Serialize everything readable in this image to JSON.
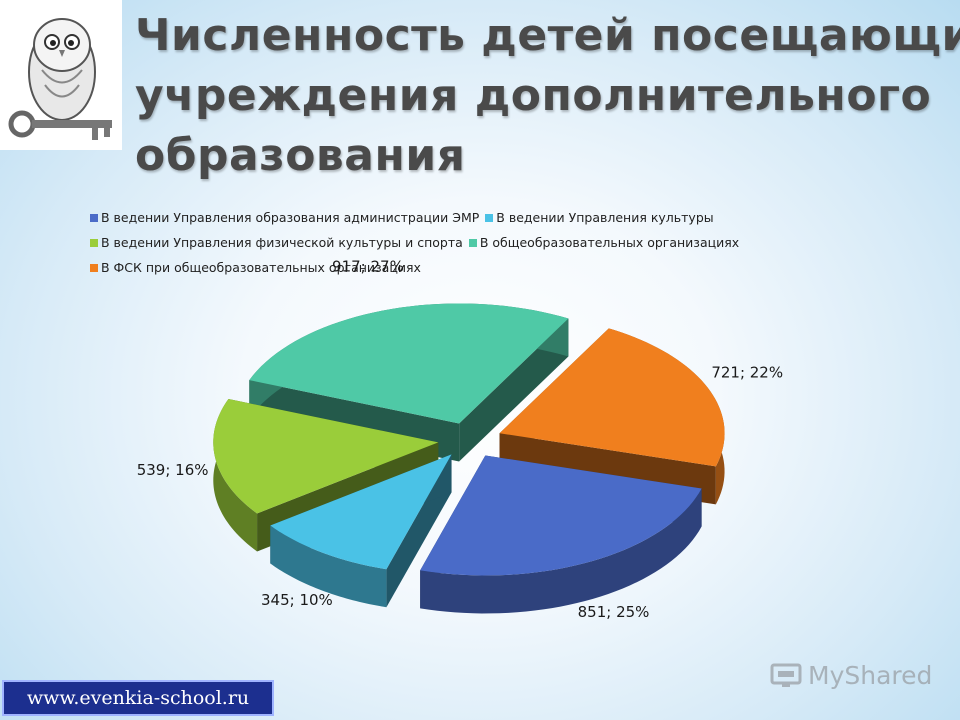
{
  "title_lines": [
    "Численность детей посещающих",
    "учреждения дополнительного",
    "образования"
  ],
  "legend_rows": [
    [
      0,
      1
    ],
    [
      2,
      3
    ],
    [
      4
    ]
  ],
  "website": "www.evenkia-school.ru",
  "watermark": "MyShared",
  "chart_data": {
    "type": "pie",
    "title": "",
    "categories": [
      "В ведении Управления образования администрации ЭМР",
      "В ведении Управления культуры",
      "В ведении Управления физической культуры и спорта",
      "В общеобразовательных организациях",
      "В ФСК при общеобразовательных организациях"
    ],
    "values": [
      851,
      345,
      539,
      917,
      721
    ],
    "percents": [
      25,
      10,
      16,
      27,
      22
    ],
    "data_labels": [
      "851; 25%",
      "345; 10%",
      "539; 16%",
      "917; 27%",
      "721; 22%"
    ],
    "colors": [
      "#4a6bc8",
      "#4ac2e6",
      "#9acd3a",
      "#4fc9a6",
      "#f07f1e"
    ],
    "legend_placement": "top",
    "exploded": true,
    "three_d": true
  }
}
